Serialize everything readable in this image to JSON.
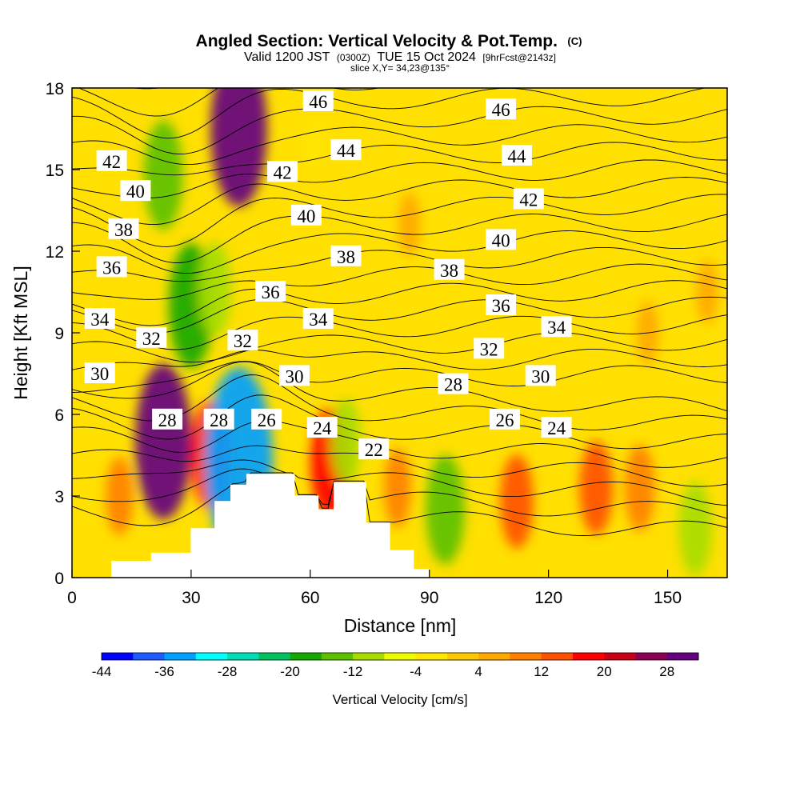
{
  "header": {
    "title": "Angled Section: Vertical Velocity & Pot.Temp.",
    "title_mark": "(C)",
    "valid_prefix": "Valid 1200 JST",
    "valid_utc": "(0300Z)",
    "valid_date": "TUE 15 Oct 2024",
    "forecast": "[9hrFcst@2143z]",
    "slice": "slice X,Y= 34,23@135°"
  },
  "chart_data": {
    "type": "heatmap",
    "xlabel": "Distance [nm]",
    "ylabel": "Height [Kft MSL]",
    "xlim": [
      0,
      165
    ],
    "ylim": [
      0,
      18
    ],
    "x_ticks": [
      "0",
      "30",
      "60",
      "90",
      "120",
      "150"
    ],
    "y_ticks": [
      "0",
      "3",
      "6",
      "9",
      "12",
      "15",
      "18"
    ],
    "x_tick_values": [
      0,
      30,
      60,
      90,
      120,
      150
    ],
    "y_tick_values": [
      0,
      3,
      6,
      9,
      12,
      15,
      18
    ],
    "colorbar": {
      "label": "Vertical Velocity [cm/s]",
      "min": -44,
      "max": 32,
      "step": 4,
      "tick_labels": [
        "-44",
        "-36",
        "-28",
        "-20",
        "-12",
        "-4",
        "4",
        "12",
        "20",
        "28"
      ],
      "tick_values": [
        -44,
        -36,
        -28,
        -20,
        -12,
        -4,
        4,
        12,
        20,
        28
      ],
      "colors": [
        "#0000ff",
        "#1e5aff",
        "#00a0ff",
        "#00ffff",
        "#00dcb4",
        "#00c060",
        "#16a800",
        "#5cc000",
        "#a8dc00",
        "#eefc00",
        "#ffe600",
        "#ffc800",
        "#ffa800",
        "#ff8000",
        "#ff5000",
        "#ff0000",
        "#c80018",
        "#8c0050",
        "#640080"
      ]
    },
    "velocity_features": [
      {
        "x": 23,
        "y": 14.8,
        "value": -16
      },
      {
        "x": 30,
        "y": 10.0,
        "value": -20
      },
      {
        "x": 36,
        "y": 10.6,
        "value": -12
      },
      {
        "x": 42,
        "y": 16.5,
        "value": 28
      },
      {
        "x": 23,
        "y": 5.0,
        "value": 28
      },
      {
        "x": 35,
        "y": 4.5,
        "value": 16
      },
      {
        "x": 12,
        "y": 3.0,
        "value": 8
      },
      {
        "x": 42,
        "y": 4.3,
        "value": -36
      },
      {
        "x": 65,
        "y": 4.2,
        "value": 16
      },
      {
        "x": 69,
        "y": 5.0,
        "value": -10
      },
      {
        "x": 82,
        "y": 3.3,
        "value": 8
      },
      {
        "x": 94,
        "y": 2.5,
        "value": -16
      },
      {
        "x": 112,
        "y": 2.8,
        "value": 12
      },
      {
        "x": 132,
        "y": 3.3,
        "value": 12
      },
      {
        "x": 143,
        "y": 3.3,
        "value": 10
      },
      {
        "x": 157,
        "y": 1.8,
        "value": -12
      },
      {
        "x": 85,
        "y": 13.0,
        "value": 4
      },
      {
        "x": 160,
        "y": 10.5,
        "value": 4
      },
      {
        "x": 145,
        "y": 9.0,
        "value": 4
      },
      {
        "x": 61,
        "y": 16.0,
        "value": -2
      }
    ],
    "terrain": {
      "x": [
        0,
        10,
        20,
        30,
        36,
        40,
        44,
        52,
        56,
        62,
        66,
        70,
        74,
        80,
        86,
        90,
        165
      ],
      "height": [
        0,
        0.6,
        0.9,
        1.8,
        2.8,
        3.4,
        3.8,
        3.8,
        3.0,
        2.5,
        3.5,
        3.5,
        2.0,
        1.0,
        0.3,
        0,
        0
      ]
    },
    "isentropes": {
      "levels": [
        22,
        23,
        24,
        25,
        26,
        27,
        28,
        29,
        30,
        31,
        32,
        33,
        34,
        35,
        36,
        37,
        38,
        39,
        40,
        41,
        42,
        43,
        44,
        45,
        46,
        47,
        48
      ],
      "labels": [
        {
          "text": "46",
          "x": 62,
          "y": 17.5
        },
        {
          "text": "46",
          "x": 108,
          "y": 17.2
        },
        {
          "text": "44",
          "x": 69,
          "y": 15.7
        },
        {
          "text": "44",
          "x": 112,
          "y": 15.5
        },
        {
          "text": "42",
          "x": 10,
          "y": 15.3
        },
        {
          "text": "42",
          "x": 53,
          "y": 14.9
        },
        {
          "text": "42",
          "x": 115,
          "y": 13.9
        },
        {
          "text": "40",
          "x": 16,
          "y": 14.2
        },
        {
          "text": "40",
          "x": 59,
          "y": 13.3
        },
        {
          "text": "40",
          "x": 108,
          "y": 12.4
        },
        {
          "text": "38",
          "x": 13,
          "y": 12.8
        },
        {
          "text": "38",
          "x": 69,
          "y": 11.8
        },
        {
          "text": "38",
          "x": 95,
          "y": 11.3
        },
        {
          "text": "36",
          "x": 10,
          "y": 11.4
        },
        {
          "text": "36",
          "x": 50,
          "y": 10.5
        },
        {
          "text": "36",
          "x": 108,
          "y": 10.0
        },
        {
          "text": "34",
          "x": 7,
          "y": 9.5
        },
        {
          "text": "34",
          "x": 62,
          "y": 9.5
        },
        {
          "text": "34",
          "x": 122,
          "y": 9.2
        },
        {
          "text": "32",
          "x": 20,
          "y": 8.8
        },
        {
          "text": "32",
          "x": 43,
          "y": 8.7
        },
        {
          "text": "32",
          "x": 105,
          "y": 8.4
        },
        {
          "text": "30",
          "x": 7,
          "y": 7.5
        },
        {
          "text": "30",
          "x": 56,
          "y": 7.4
        },
        {
          "text": "30",
          "x": 118,
          "y": 7.4
        },
        {
          "text": "28",
          "x": 24,
          "y": 5.8
        },
        {
          "text": "28",
          "x": 37,
          "y": 5.8
        },
        {
          "text": "28",
          "x": 96,
          "y": 7.1
        },
        {
          "text": "26",
          "x": 49,
          "y": 5.8
        },
        {
          "text": "26",
          "x": 109,
          "y": 5.8
        },
        {
          "text": "24",
          "x": 63,
          "y": 5.5
        },
        {
          "text": "24",
          "x": 122,
          "y": 5.5
        },
        {
          "text": "22",
          "x": 76,
          "y": 4.7
        }
      ]
    }
  }
}
